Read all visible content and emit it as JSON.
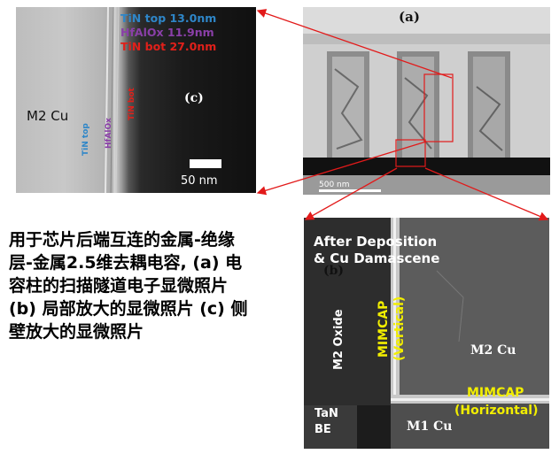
{
  "panel_c": {
    "tin_top": "TiN top 13.0nm",
    "hfalox": "HfAlOx 11.9nm",
    "tin_bot": "TiN bot 27.0nm",
    "label": "(c)",
    "m2_cu": "M2 Cu",
    "rot_tin_top": "TiN top",
    "rot_hfalox": "HfAlOx",
    "rot_tin_bot": "TiN bot",
    "scale": "50 nm"
  },
  "panel_a": {
    "label": "(a)",
    "scale": "500 nm"
  },
  "panel_b": {
    "title_line1": "After Deposition",
    "title_line2": "& Cu Damascene",
    "label": "(b)",
    "m2_oxide": "M2 Oxide",
    "mimcap_vertical_1": "MIMCAP",
    "mimcap_vertical_2": "(Vertical)",
    "m2_cu": "M2 Cu",
    "mimcap_horizontal_1": "MIMCAP",
    "mimcap_horizontal_2": "(Horizontal)",
    "tan_1": "TaN",
    "tan_2": "BE",
    "m1_cu": "M1 Cu"
  },
  "caption": {
    "line1": "用于芯片后端互连的金属-绝缘",
    "line2": "层-金属2.5维去耦电容, (a) 电",
    "line3": "容柱的扫描隧道电子显微照片",
    "line4": "(b) 局部放大的显微照片 (c) 侧",
    "line5": "壁放大的显微照片"
  },
  "colors": {
    "tin_top": "#2e86c8",
    "hfalox": "#8a3fa8",
    "tin_bot": "#e0201a",
    "mimcap": "#f2ee00",
    "arrow": "#e21a1a"
  }
}
